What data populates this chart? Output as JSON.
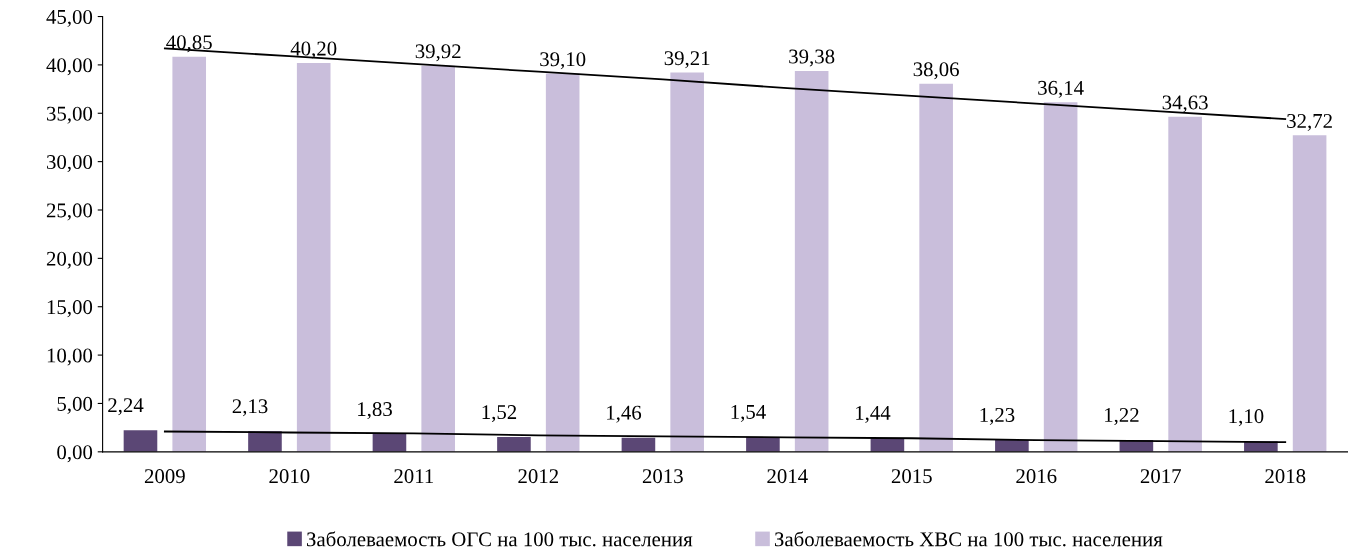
{
  "chart_data": {
    "type": "bar",
    "categories": [
      "2009",
      "2010",
      "2011",
      "2012",
      "2013",
      "2014",
      "2015",
      "2016",
      "2017",
      "2018"
    ],
    "series": [
      {
        "name": "Заболеваемость ОГС на 100 тыс. населения",
        "color": "#5b4775",
        "values": [
          2.24,
          2.13,
          1.83,
          1.52,
          1.46,
          1.54,
          1.44,
          1.23,
          1.22,
          1.1
        ],
        "value_labels": [
          "2,24",
          "2,13",
          "1,83",
          "1,52",
          "1,46",
          "1,54",
          "1,44",
          "1,23",
          "1,22",
          "1,10"
        ]
      },
      {
        "name": "Заболеваемость ХВС на 100 тыс. населения",
        "color": "#c9bedb",
        "values": [
          40.85,
          40.2,
          39.92,
          39.1,
          39.21,
          39.38,
          38.06,
          36.14,
          34.63,
          32.72
        ],
        "value_labels": [
          "40,85",
          "40,20",
          "39,92",
          "39,10",
          "39,21",
          "39,38",
          "38,06",
          "36,14",
          "34,63",
          "32,72"
        ]
      },
      {
        "type": "line",
        "color": "#000000",
        "values": [
          2.1,
          2.0,
          1.9,
          1.7,
          1.6,
          1.5,
          1.4,
          1.2,
          1.1,
          1.0
        ]
      },
      {
        "type": "line",
        "color": "#000000",
        "values": [
          41.7,
          40.9,
          40.1,
          39.3,
          38.5,
          37.6,
          36.8,
          36.0,
          35.2,
          34.4
        ]
      }
    ],
    "ylim": [
      0,
      45
    ],
    "yticks": [
      {
        "value": 0,
        "label": "0,00"
      },
      {
        "value": 5,
        "label": "5,00"
      },
      {
        "value": 10,
        "label": "10,00"
      },
      {
        "value": 15,
        "label": "15,00"
      },
      {
        "value": 20,
        "label": "20,00"
      },
      {
        "value": 25,
        "label": "25,00"
      },
      {
        "value": 30,
        "label": "30,00"
      },
      {
        "value": 35,
        "label": "35,00"
      },
      {
        "value": 40,
        "label": "40,00"
      },
      {
        "value": 45,
        "label": "45,00"
      }
    ],
    "grid": false,
    "legend": "bottom"
  }
}
